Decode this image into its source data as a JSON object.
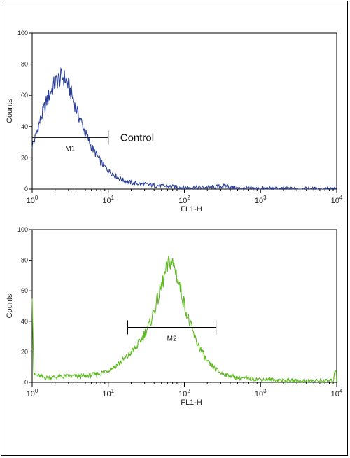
{
  "chart_data": [
    {
      "type": "line",
      "color": "#2a3f98",
      "xlabel": "FL1-H",
      "ylabel": "Counts",
      "xscale": "log",
      "xlim": [
        1,
        10000
      ],
      "ylim": [
        0,
        100
      ],
      "xticks": [
        {
          "value": 1,
          "label": "10",
          "exp": "0"
        },
        {
          "value": 10,
          "label": "10",
          "exp": "1"
        },
        {
          "value": 100,
          "label": "10",
          "exp": "2"
        },
        {
          "value": 1000,
          "label": "10",
          "exp": "3"
        },
        {
          "value": 10000,
          "label": "10",
          "exp": "4"
        }
      ],
      "yticks": [
        "0",
        "20",
        "40",
        "60",
        "80",
        "100"
      ],
      "marker": {
        "label": "M1",
        "x_from": 1,
        "x_to": 10,
        "y": 33
      },
      "annotation": "Control",
      "x": [
        1,
        1.1,
        1.2,
        1.4,
        1.6,
        1.8,
        2.0,
        2.2,
        2.5,
        2.8,
        3.1,
        3.5,
        4.0,
        4.5,
        5.0,
        6.0,
        7.0,
        8.0,
        10,
        12,
        15,
        20,
        30,
        50,
        70,
        100,
        200,
        350,
        500,
        1000,
        3000,
        10000
      ],
      "y": [
        28,
        33,
        40,
        50,
        58,
        64,
        68,
        70,
        72,
        70,
        64,
        57,
        48,
        42,
        36,
        27,
        22,
        17,
        12,
        9,
        6,
        4,
        3,
        2,
        1.5,
        1,
        1,
        2,
        0.5,
        0.3,
        0.2,
        0
      ]
    },
    {
      "type": "line",
      "color": "#5cb81f",
      "xlabel": "FL1-H",
      "ylabel": "Counts",
      "xscale": "log",
      "xlim": [
        1,
        10000
      ],
      "ylim": [
        0,
        100
      ],
      "xticks": [
        {
          "value": 1,
          "label": "10",
          "exp": "0"
        },
        {
          "value": 10,
          "label": "10",
          "exp": "1"
        },
        {
          "value": 100,
          "label": "10",
          "exp": "2"
        },
        {
          "value": 1000,
          "label": "10",
          "exp": "3"
        },
        {
          "value": 10000,
          "label": "10",
          "exp": "4"
        }
      ],
      "yticks": [
        "0",
        "20",
        "40",
        "60",
        "80",
        "100"
      ],
      "marker": {
        "label": "M2",
        "x_from": 18,
        "x_to": 260,
        "y": 36
      },
      "annotation": "",
      "x": [
        1,
        1.05,
        1.5,
        3,
        5,
        8,
        12,
        18,
        25,
        35,
        45,
        55,
        65,
        75,
        90,
        110,
        140,
        200,
        300,
        500,
        1000,
        3000,
        9000,
        9800,
        10000
      ],
      "y": [
        60,
        5,
        3,
        4,
        4,
        6,
        10,
        17,
        25,
        38,
        55,
        70,
        80,
        75,
        60,
        43,
        28,
        13,
        6,
        3,
        2,
        1,
        1,
        10,
        0
      ]
    }
  ]
}
